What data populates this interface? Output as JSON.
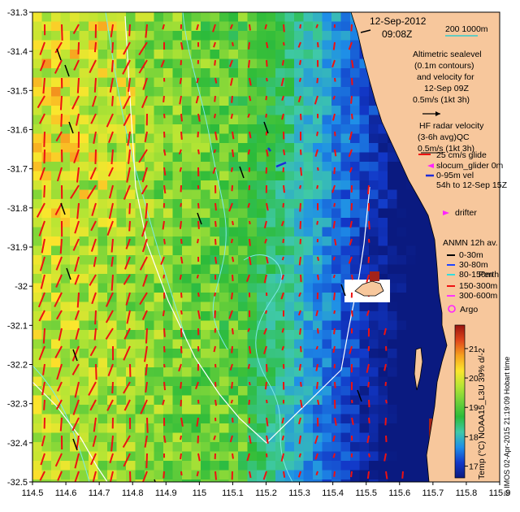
{
  "map": {
    "lon_range": [
      114.5,
      115.9
    ],
    "lat_range": [
      -32.5,
      -31.3
    ],
    "lon_ticks": [
      "114.5",
      "114.6",
      "114.7",
      "114.8",
      "114.9",
      "115",
      "115.1",
      "115.2",
      "115.3",
      "115.4",
      "115.5",
      "115.6",
      "115.7",
      "115.8",
      "115.9"
    ],
    "lat_ticks": [
      "-31.3",
      "-31.4",
      "-31.5",
      "-31.6",
      "-31.7",
      "-31.8",
      "-31.9",
      "-32",
      "-32.1",
      "-32.2",
      "-32.3",
      "-32.4",
      "-32.5"
    ],
    "colors": {
      "land": "#f7c79c",
      "no_data": "#ffffff",
      "coast_line": "#000000",
      "contour": "#7ee8e8",
      "track": "#ffffff",
      "arrow_current": "#ee1111",
      "arrow_radar": "#000000"
    }
  },
  "title": {
    "date": "12-Sep-2012",
    "time": "09:08Z"
  },
  "scale_bar": {
    "label": "200  1000m",
    "color": "#33cccc"
  },
  "legend": {
    "altimetric": [
      "Altimetric sealevel",
      "(0.1m contours)",
      "and velocity for",
      "12-Sep 09Z",
      "0.5m/s (1kt 3h)"
    ],
    "hf_radar": [
      "HF radar velocity",
      "(3-6h avg)QC",
      "0.5m/s (1kt 3h)"
    ],
    "glider": [
      "25 cm/s glide",
      "slocum_glider 0m",
      "0-95m vel",
      "54h to 12-Sep 15Z"
    ],
    "drifter": "drifter",
    "anmn": [
      "ANMN 12h av.",
      "0-30m",
      "30-80m",
      "80-150m",
      "150-300m",
      "300-600m"
    ],
    "anmn_colors": [
      "#000000",
      "#1e44ff",
      "#33dddd",
      "#ee1111",
      "#ff33ff"
    ],
    "perth_label": "Perth",
    "argo": "Argo",
    "glider_color": "#1e2bd6",
    "drifter_color": "#ff22ff"
  },
  "colorbar": {
    "ticks": [
      "17",
      "18",
      "19",
      "20",
      "21"
    ],
    "range": [
      16.6,
      21.8
    ],
    "label": "Temp (°C) NOAA15_L3U 39% d/-2",
    "stops": [
      "#0a1a80",
      "#1238c8",
      "#1e8ee8",
      "#3fc9a8",
      "#2cbb3a",
      "#6fd13a",
      "#b6e534",
      "#fbe62d",
      "#f7a21f",
      "#e0461b",
      "#9a1510"
    ]
  },
  "credit": "© IMOS 02-Apr-2015 21:19:09 Hobart time"
}
